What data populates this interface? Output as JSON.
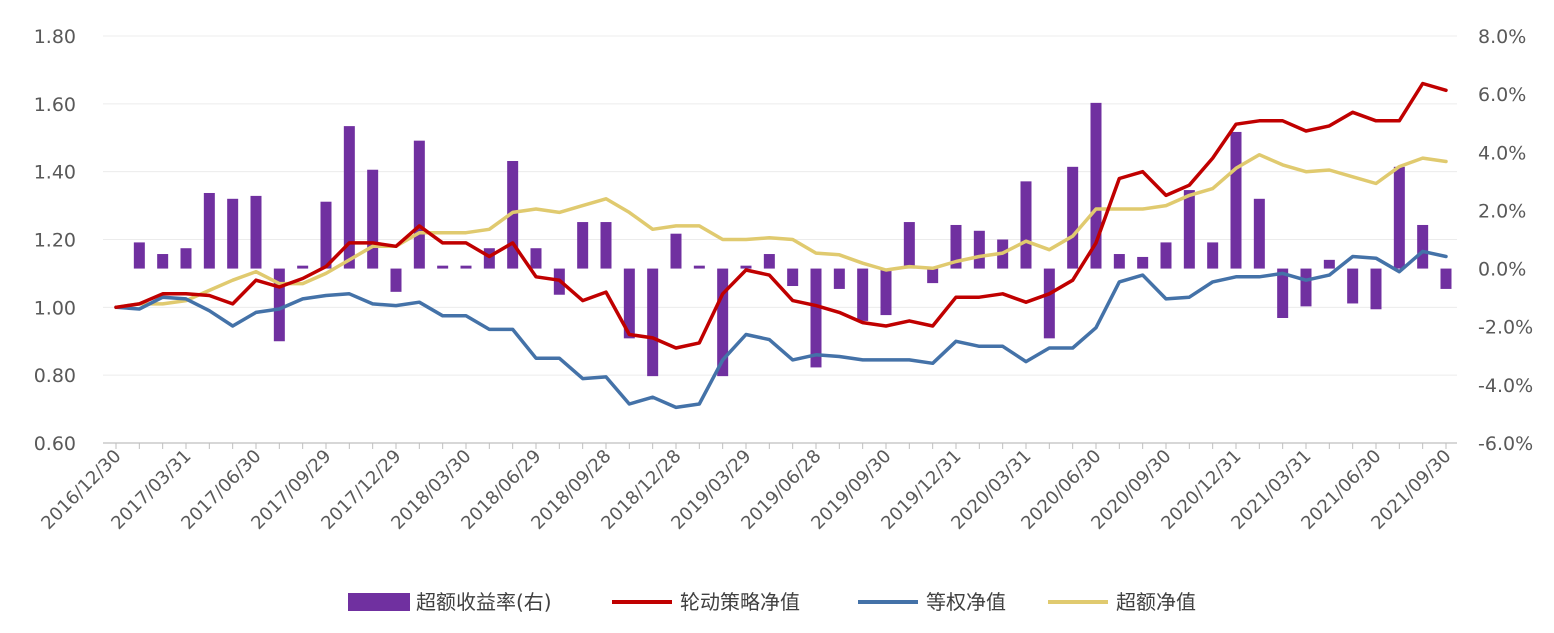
{
  "chart_data": {
    "type": "bar+line",
    "title": "",
    "x": [
      "2016/12/30",
      "2017/01/26",
      "2017/02/28",
      "2017/03/31",
      "2017/04/28",
      "2017/05/31",
      "2017/06/30",
      "2017/07/31",
      "2017/08/31",
      "2017/09/29",
      "2017/10/31",
      "2017/11/30",
      "2017/12/29",
      "2018/01/31",
      "2018/02/28",
      "2018/03/30",
      "2018/04/27",
      "2018/05/31",
      "2018/06/29",
      "2018/07/31",
      "2018/08/31",
      "2018/09/28",
      "2018/10/31",
      "2018/11/30",
      "2018/12/28",
      "2019/01/31",
      "2019/02/28",
      "2019/03/29",
      "2019/04/30",
      "2019/05/31",
      "2019/06/28",
      "2019/07/31",
      "2019/08/30",
      "2019/09/30",
      "2019/10/31",
      "2019/11/29",
      "2019/12/31",
      "2020/01/23",
      "2020/02/28",
      "2020/03/31",
      "2020/04/30",
      "2020/05/29",
      "2020/06/30",
      "2020/07/31",
      "2020/08/31",
      "2020/09/30",
      "2020/10/30",
      "2020/11/30",
      "2020/12/31",
      "2021/01/29",
      "2021/02/26",
      "2021/03/31",
      "2021/04/30",
      "2021/05/31",
      "2021/06/30",
      "2021/07/30",
      "2021/08/31",
      "2021/09/30"
    ],
    "x_tick_labels": [
      "2016/12/30",
      "2017/03/31",
      "2017/06/30",
      "2017/09/29",
      "2017/12/29",
      "2018/03/30",
      "2018/06/29",
      "2018/09/28",
      "2018/12/28",
      "2019/03/29",
      "2019/06/28",
      "2019/09/30",
      "2019/12/31",
      "2020/03/31",
      "2020/06/30",
      "2020/09/30",
      "2020/12/31",
      "2021/03/31",
      "2021/06/30",
      "2021/09/30"
    ],
    "y_left": {
      "min": 0.6,
      "max": 1.8,
      "ticks": [
        "0.60",
        "0.80",
        "1.00",
        "1.20",
        "1.40",
        "1.60",
        "1.80"
      ]
    },
    "y_right": {
      "min": -6.0,
      "max": 8.0,
      "ticks": [
        "-6.0%",
        "-4.0%",
        "-2.0%",
        "0.0%",
        "2.0%",
        "4.0%",
        "6.0%",
        "8.0%"
      ]
    },
    "grid": true,
    "legend_position": "bottom",
    "series": [
      {
        "name": "超额收益率(右)",
        "type": "bar",
        "axis": "right",
        "color": "#7030A0",
        "unit": "%",
        "values": [
          null,
          0.9,
          0.5,
          0.7,
          2.6,
          2.4,
          2.5,
          -2.5,
          0.1,
          2.3,
          4.9,
          3.4,
          -0.8,
          4.4,
          0.1,
          0.1,
          0.7,
          3.7,
          0.7,
          -0.9,
          1.6,
          1.6,
          -2.4,
          -3.7,
          1.2,
          0.1,
          -3.7,
          0.1,
          0.5,
          -0.6,
          -3.4,
          -0.7,
          -1.8,
          -1.6,
          1.6,
          -0.5,
          1.5,
          1.3,
          1.0,
          3.0,
          -2.4,
          3.5,
          5.7,
          0.5,
          0.4,
          0.9,
          2.7,
          0.9,
          4.7,
          2.4,
          -1.7,
          -1.3,
          0.3,
          -1.2,
          -1.4,
          3.5,
          1.5,
          -0.7
        ]
      },
      {
        "name": "轮动策略净值",
        "type": "line",
        "axis": "left",
        "color": "#C00000",
        "values": [
          1.0,
          1.01,
          1.04,
          1.04,
          1.035,
          1.01,
          1.08,
          1.06,
          1.085,
          1.12,
          1.19,
          1.19,
          1.18,
          1.24,
          1.19,
          1.19,
          1.15,
          1.19,
          1.09,
          1.08,
          1.02,
          1.045,
          0.92,
          0.91,
          0.88,
          0.895,
          1.04,
          1.11,
          1.095,
          1.02,
          1.005,
          0.985,
          0.955,
          0.945,
          0.96,
          0.945,
          1.03,
          1.03,
          1.04,
          1.015,
          1.04,
          1.08,
          1.19,
          1.38,
          1.4,
          1.33,
          1.36,
          1.44,
          1.54,
          1.55,
          1.55,
          1.52,
          1.535,
          1.575,
          1.55,
          1.55,
          1.66,
          1.64
        ]
      },
      {
        "name": "等权净值",
        "type": "line",
        "axis": "left",
        "color": "#4472A8",
        "values": [
          1.0,
          0.995,
          1.03,
          1.025,
          0.99,
          0.945,
          0.985,
          0.995,
          1.025,
          1.035,
          1.04,
          1.01,
          1.005,
          1.015,
          0.975,
          0.975,
          0.935,
          0.935,
          0.85,
          0.85,
          0.79,
          0.795,
          0.715,
          0.735,
          0.705,
          0.715,
          0.845,
          0.92,
          0.905,
          0.845,
          0.86,
          0.855,
          0.845,
          0.845,
          0.845,
          0.835,
          0.9,
          0.885,
          0.885,
          0.84,
          0.88,
          0.88,
          0.94,
          1.075,
          1.095,
          1.025,
          1.03,
          1.075,
          1.09,
          1.09,
          1.1,
          1.08,
          1.095,
          1.15,
          1.145,
          1.105,
          1.165,
          1.15
        ]
      },
      {
        "name": "超额净值",
        "type": "line",
        "axis": "left",
        "color": "#E0CA6F",
        "values": [
          1.0,
          1.01,
          1.01,
          1.02,
          1.05,
          1.08,
          1.105,
          1.07,
          1.07,
          1.1,
          1.14,
          1.18,
          1.18,
          1.22,
          1.22,
          1.22,
          1.23,
          1.28,
          1.29,
          1.28,
          1.3,
          1.32,
          1.28,
          1.23,
          1.24,
          1.24,
          1.2,
          1.2,
          1.205,
          1.2,
          1.16,
          1.155,
          1.13,
          1.11,
          1.12,
          1.115,
          1.135,
          1.15,
          1.16,
          1.195,
          1.17,
          1.21,
          1.29,
          1.29,
          1.29,
          1.3,
          1.33,
          1.35,
          1.41,
          1.45,
          1.42,
          1.4,
          1.405,
          1.385,
          1.365,
          1.415,
          1.44,
          1.43
        ]
      }
    ]
  }
}
